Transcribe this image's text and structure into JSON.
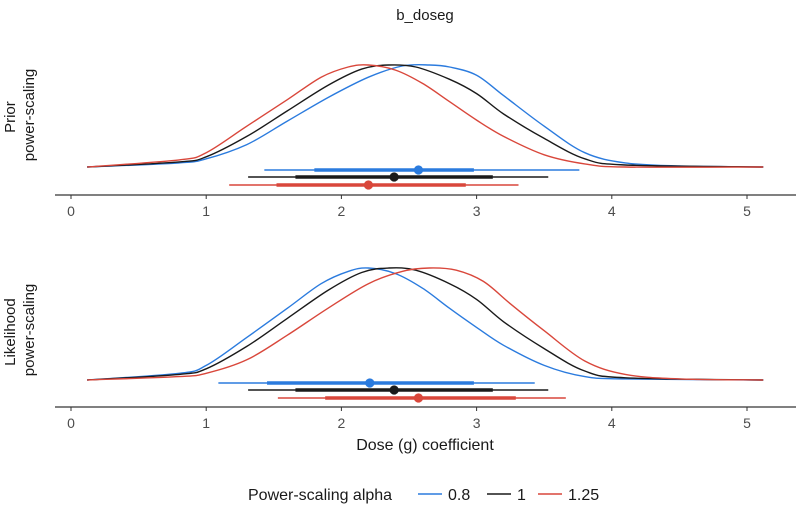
{
  "chart_data": {
    "type": "density",
    "title": "b_doseg",
    "xlabel": "Dose (g) coefficient",
    "xlim": [
      0,
      5
    ],
    "x_ticks": [
      0,
      1,
      2,
      3,
      4,
      5
    ],
    "x_tick_labels": [
      "0",
      "1",
      "2",
      "3",
      "4",
      "5"
    ],
    "grid": false,
    "legend": {
      "title": "Power-scaling alpha",
      "position": "bottom",
      "entries": [
        {
          "label": "0.8",
          "color": "#2b7bde"
        },
        {
          "label": "1",
          "color": "#1a1a1a"
        },
        {
          "label": "1.25",
          "color": "#d9473b"
        }
      ]
    },
    "panels": [
      {
        "label_lines": [
          "Prior",
          "power-scaling"
        ],
        "series": [
          {
            "name": "0.8",
            "color": "#2b7bde",
            "density_peak_x": 2.5,
            "density_points": [
              [
                0.12,
                0.0
              ],
              [
                0.8,
                0.04
              ],
              [
                1.0,
                0.08
              ],
              [
                1.3,
                0.22
              ],
              [
                1.6,
                0.45
              ],
              [
                1.9,
                0.68
              ],
              [
                2.2,
                0.88
              ],
              [
                2.45,
                0.99
              ],
              [
                2.65,
                1.0
              ],
              [
                2.8,
                0.98
              ],
              [
                3.0,
                0.9
              ],
              [
                3.2,
                0.7
              ],
              [
                3.5,
                0.4
              ],
              [
                3.8,
                0.14
              ],
              [
                4.1,
                0.04
              ],
              [
                4.5,
                0.01
              ],
              [
                5.12,
                0.0
              ]
            ],
            "point_estimate": 2.57,
            "interval_66": [
              1.8,
              2.98
            ],
            "interval_95": [
              1.43,
              3.76
            ]
          },
          {
            "name": "1",
            "color": "#1a1a1a",
            "density_peak_x": 2.4,
            "density_points": [
              [
                0.12,
                0.0
              ],
              [
                0.8,
                0.05
              ],
              [
                1.0,
                0.1
              ],
              [
                1.3,
                0.3
              ],
              [
                1.6,
                0.55
              ],
              [
                1.9,
                0.8
              ],
              [
                2.15,
                0.96
              ],
              [
                2.35,
                1.0
              ],
              [
                2.55,
                0.98
              ],
              [
                2.8,
                0.86
              ],
              [
                3.0,
                0.72
              ],
              [
                3.2,
                0.52
              ],
              [
                3.5,
                0.28
              ],
              [
                3.8,
                0.08
              ],
              [
                4.1,
                0.02
              ],
              [
                5.12,
                0.0
              ]
            ],
            "point_estimate": 2.39,
            "interval_66": [
              1.66,
              3.12
            ],
            "interval_95": [
              1.31,
              3.53
            ]
          },
          {
            "name": "1.25",
            "color": "#d9473b",
            "density_peak_x": 2.2,
            "density_points": [
              [
                0.12,
                0.0
              ],
              [
                0.8,
                0.07
              ],
              [
                1.0,
                0.14
              ],
              [
                1.3,
                0.4
              ],
              [
                1.6,
                0.66
              ],
              [
                1.85,
                0.88
              ],
              [
                2.05,
                0.98
              ],
              [
                2.2,
                1.0
              ],
              [
                2.4,
                0.95
              ],
              [
                2.6,
                0.82
              ],
              [
                2.8,
                0.64
              ],
              [
                3.0,
                0.46
              ],
              [
                3.2,
                0.3
              ],
              [
                3.5,
                0.12
              ],
              [
                3.8,
                0.03
              ],
              [
                4.1,
                0.0
              ]
            ],
            "point_estimate": 2.2,
            "interval_66": [
              1.52,
              2.92
            ],
            "interval_95": [
              1.17,
              3.31
            ]
          }
        ]
      },
      {
        "label_lines": [
          "Likelihood",
          "power-scaling"
        ],
        "series": [
          {
            "name": "0.8",
            "color": "#2b7bde",
            "density_peak_x": 2.2,
            "density_points": [
              [
                0.12,
                0.0
              ],
              [
                0.8,
                0.06
              ],
              [
                1.0,
                0.13
              ],
              [
                1.3,
                0.38
              ],
              [
                1.6,
                0.64
              ],
              [
                1.85,
                0.86
              ],
              [
                2.05,
                0.97
              ],
              [
                2.2,
                1.0
              ],
              [
                2.4,
                0.95
              ],
              [
                2.6,
                0.82
              ],
              [
                2.8,
                0.64
              ],
              [
                3.0,
                0.47
              ],
              [
                3.2,
                0.31
              ],
              [
                3.5,
                0.13
              ],
              [
                3.8,
                0.03
              ],
              [
                4.1,
                0.01
              ],
              [
                5.12,
                0.0
              ]
            ],
            "point_estimate": 2.21,
            "interval_66": [
              1.45,
              2.98
            ],
            "interval_95": [
              1.09,
              3.43
            ]
          },
          {
            "name": "1",
            "color": "#1a1a1a",
            "density_peak_x": 2.4,
            "density_points": [
              [
                0.12,
                0.0
              ],
              [
                0.8,
                0.05
              ],
              [
                1.0,
                0.1
              ],
              [
                1.3,
                0.3
              ],
              [
                1.6,
                0.55
              ],
              [
                1.9,
                0.8
              ],
              [
                2.15,
                0.96
              ],
              [
                2.35,
                1.0
              ],
              [
                2.55,
                0.98
              ],
              [
                2.8,
                0.86
              ],
              [
                3.0,
                0.72
              ],
              [
                3.2,
                0.52
              ],
              [
                3.5,
                0.28
              ],
              [
                3.8,
                0.08
              ],
              [
                4.1,
                0.02
              ],
              [
                5.12,
                0.0
              ]
            ],
            "point_estimate": 2.39,
            "interval_66": [
              1.66,
              3.12
            ],
            "interval_95": [
              1.31,
              3.53
            ]
          },
          {
            "name": "1.25",
            "color": "#d9473b",
            "density_peak_x": 2.55,
            "density_points": [
              [
                0.12,
                0.0
              ],
              [
                0.8,
                0.03
              ],
              [
                1.0,
                0.06
              ],
              [
                1.3,
                0.18
              ],
              [
                1.6,
                0.4
              ],
              [
                1.9,
                0.64
              ],
              [
                2.2,
                0.86
              ],
              [
                2.45,
                0.97
              ],
              [
                2.65,
                1.0
              ],
              [
                2.85,
                0.98
              ],
              [
                3.05,
                0.88
              ],
              [
                3.25,
                0.68
              ],
              [
                3.5,
                0.44
              ],
              [
                3.8,
                0.17
              ],
              [
                4.1,
                0.05
              ],
              [
                4.5,
                0.01
              ],
              [
                5.12,
                0.0
              ]
            ],
            "point_estimate": 2.57,
            "interval_66": [
              1.88,
              3.29
            ],
            "interval_95": [
              1.53,
              3.66
            ]
          }
        ]
      }
    ]
  }
}
